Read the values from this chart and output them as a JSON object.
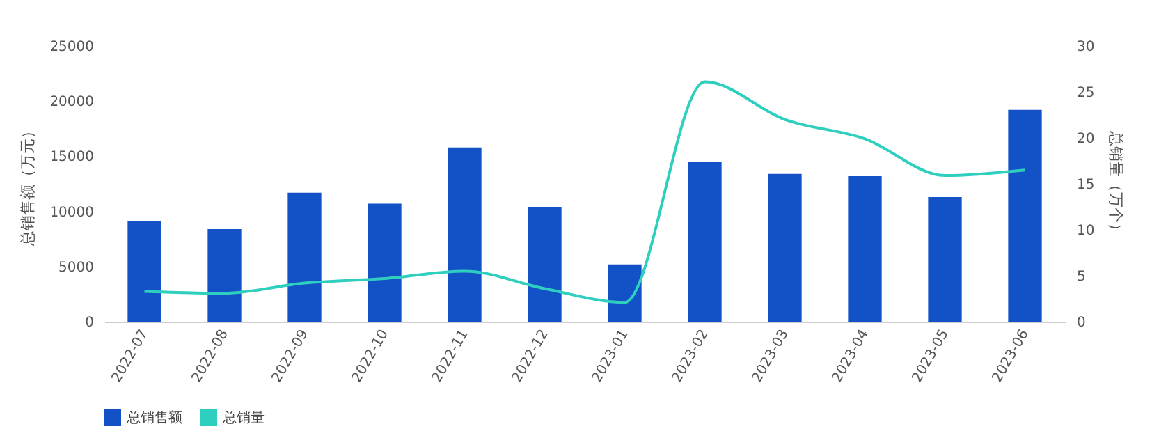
{
  "chart_data": {
    "type": "bar",
    "categories": [
      "2022-07",
      "2022-08",
      "2022-09",
      "2022-10",
      "2022-11",
      "2022-12",
      "2023-01",
      "2023-02",
      "2023-03",
      "2023-04",
      "2023-05",
      "2023-06"
    ],
    "series": [
      {
        "name": "总销售额",
        "color": "#1352c6",
        "values": [
          9100,
          8400,
          11700,
          10700,
          15800,
          10400,
          5200,
          14500,
          13400,
          13200,
          11300,
          19200
        ]
      },
      {
        "name": "总销量",
        "type": "line",
        "axis": "y2",
        "color": "#2ecfbf",
        "values": [
          3.3,
          3.1,
          4.2,
          4.7,
          5.5,
          3.6,
          2.1,
          26.1,
          22.0,
          19.9,
          15.9,
          16.5
        ]
      }
    ],
    "ylabel": "总销售额（万元）",
    "y2label": "总销量（万个）",
    "ylim": [
      0,
      25000
    ],
    "yticks": [
      0,
      5000,
      10000,
      15000,
      20000,
      25000
    ],
    "y2lim": [
      0,
      30
    ],
    "y2ticks": [
      0,
      5,
      10,
      15,
      20,
      25,
      30
    ],
    "grid": false,
    "legend": "bottom",
    "marker": "none"
  }
}
